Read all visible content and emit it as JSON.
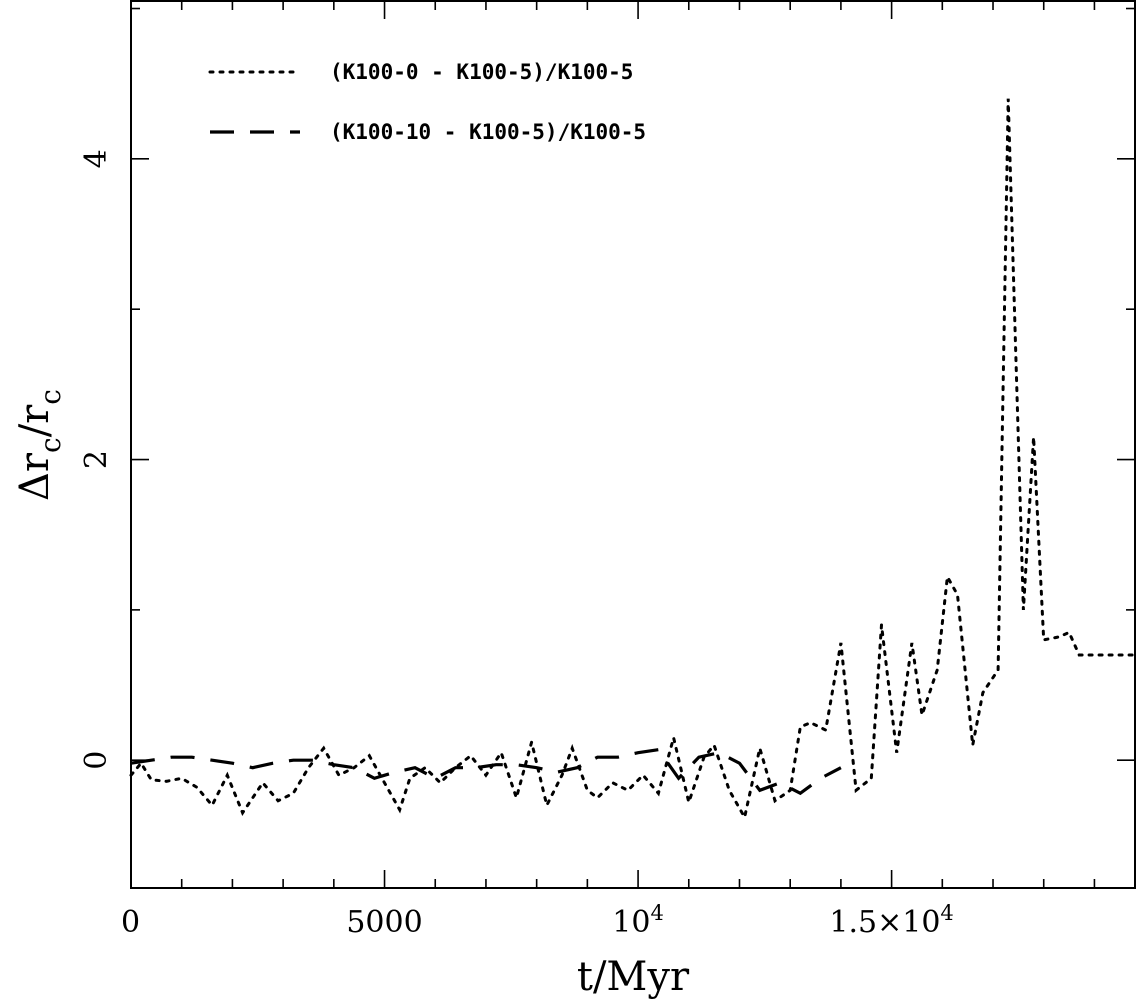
{
  "chart_data": {
    "type": "line",
    "title": "",
    "xlabel": "t/Myr",
    "ylabel": "Δr_c/r_c",
    "xlim": [
      0,
      19800
    ],
    "ylim": [
      -0.85,
      5.05
    ],
    "x_ticks": [
      {
        "value": 0,
        "label": "0"
      },
      {
        "value": 5000,
        "label": "5000"
      },
      {
        "value": 10000,
        "label": "10^4"
      },
      {
        "value": 15000,
        "label": "1.5×10^4"
      }
    ],
    "y_ticks": [
      {
        "value": 0,
        "label": "0"
      },
      {
        "value": 2,
        "label": "2"
      },
      {
        "value": 4,
        "label": "4"
      }
    ],
    "grid": false,
    "legend_position": "top-left",
    "series": [
      {
        "name": "(K100-0 - K100-5)/K100-5",
        "style": "dotted",
        "x": [
          0,
          200,
          400,
          700,
          1000,
          1300,
          1600,
          1900,
          2200,
          2600,
          2900,
          3200,
          3500,
          3800,
          4100,
          4400,
          4700,
          5000,
          5300,
          5500,
          5800,
          6100,
          6400,
          6700,
          7000,
          7300,
          7600,
          7900,
          8200,
          8500,
          8700,
          9000,
          9200,
          9500,
          9800,
          10100,
          10400,
          10700,
          11000,
          11300,
          11500,
          11800,
          12100,
          12400,
          12700,
          13000,
          13200,
          13400,
          13700,
          14000,
          14300,
          14600,
          14800,
          15100,
          15400,
          15600,
          15900,
          16100,
          16300,
          16600,
          16800,
          17100,
          17300,
          17600,
          17800,
          18000,
          18300,
          18500,
          18700,
          18900,
          19100,
          19300,
          19500,
          19800
        ],
        "y": [
          -0.1,
          -0.02,
          -0.13,
          -0.14,
          -0.12,
          -0.18,
          -0.3,
          -0.1,
          -0.35,
          -0.15,
          -0.27,
          -0.22,
          -0.05,
          0.08,
          -0.1,
          -0.05,
          0.03,
          -0.15,
          -0.33,
          -0.12,
          -0.05,
          -0.15,
          -0.05,
          0.03,
          -0.1,
          0.05,
          -0.25,
          0.12,
          -0.3,
          -0.1,
          0.08,
          -0.2,
          -0.25,
          -0.15,
          -0.2,
          -0.1,
          -0.22,
          0.15,
          -0.28,
          0.02,
          0.1,
          -0.2,
          -0.38,
          0.08,
          -0.27,
          -0.2,
          0.22,
          0.25,
          0.2,
          0.78,
          -0.2,
          -0.12,
          0.9,
          0.05,
          0.78,
          0.3,
          0.6,
          1.22,
          1.1,
          0.1,
          0.45,
          0.6,
          4.4,
          1.0,
          2.15,
          0.8,
          0.82,
          0.85,
          0.7,
          0.7,
          0.7,
          0.7,
          0.7,
          0.7
        ]
      },
      {
        "name": "(K100-10 - K100-5)/K100-5",
        "style": "dashed",
        "x": [
          0,
          400,
          800,
          1200,
          1600,
          2000,
          2400,
          2800,
          3200,
          3600,
          4000,
          4400,
          4800,
          5200,
          5600,
          6000,
          6400,
          6800,
          7200,
          7600,
          8000,
          8400,
          8800,
          9200,
          9600,
          10000,
          10400,
          10800,
          11200,
          11600,
          12000,
          12400,
          12800,
          13200,
          13600,
          14000
        ],
        "y": [
          -0.02,
          0.0,
          0.02,
          0.02,
          0.0,
          -0.02,
          -0.05,
          -0.02,
          0.0,
          0.0,
          -0.03,
          -0.05,
          -0.12,
          -0.08,
          -0.05,
          -0.12,
          -0.05,
          -0.05,
          -0.03,
          -0.03,
          -0.05,
          -0.08,
          -0.05,
          0.02,
          0.02,
          0.05,
          0.07,
          -0.12,
          0.02,
          0.05,
          -0.02,
          -0.2,
          -0.15,
          -0.22,
          -0.12,
          -0.05
        ]
      }
    ]
  }
}
